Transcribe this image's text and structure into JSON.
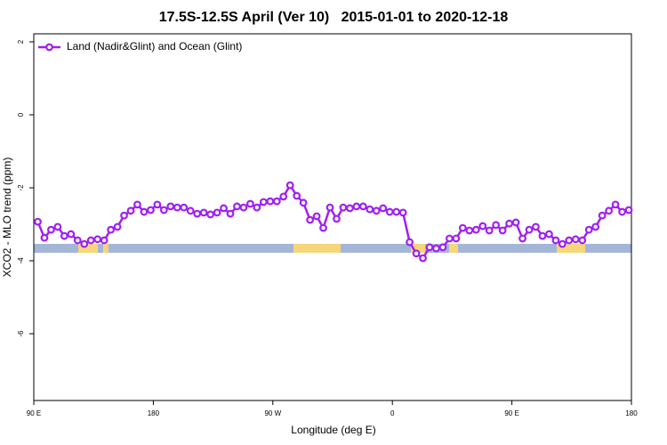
{
  "chart_data": {
    "type": "line",
    "title": "17.5S-12.5S April (Ver 10)   2015-01-01 to 2020-12-18",
    "x_label": "Longitude (deg E)",
    "y_label": "XCO2 - MLO trend (ppm)",
    "x": [
      93,
      98,
      103,
      108,
      113,
      118,
      123,
      128,
      133,
      138,
      143,
      148,
      153,
      158,
      163,
      168,
      173,
      178,
      183,
      188,
      193,
      198,
      203,
      208,
      213,
      218,
      223,
      228,
      233,
      238,
      243,
      248,
      253,
      258,
      263,
      268,
      273,
      278,
      283,
      288,
      293,
      298,
      303,
      308,
      313,
      318,
      323,
      328,
      333,
      338,
      343,
      348,
      353,
      358,
      363,
      368,
      373,
      378,
      383,
      388,
      393,
      398,
      403,
      408,
      413,
      418,
      423,
      428,
      433,
      438,
      443,
      448,
      453,
      458,
      463,
      468,
      473,
      478,
      483,
      488,
      493,
      498,
      503,
      508,
      513,
      518,
      523,
      528,
      533,
      538
    ],
    "series": [
      {
        "name": "Land (Nadir&Glint) and Ocean (Glint)",
        "color": "#a020f0",
        "values": [
          -2.93,
          -3.37,
          -3.15,
          -3.07,
          -3.32,
          -3.27,
          -3.44,
          -3.54,
          -3.44,
          -3.41,
          -3.44,
          -3.15,
          -3.07,
          -2.76,
          -2.63,
          -2.46,
          -2.66,
          -2.61,
          -2.46,
          -2.61,
          -2.51,
          -2.54,
          -2.54,
          -2.63,
          -2.71,
          -2.68,
          -2.73,
          -2.68,
          -2.56,
          -2.71,
          -2.51,
          -2.54,
          -2.44,
          -2.54,
          -2.39,
          -2.37,
          -2.37,
          -2.24,
          -1.93,
          -2.22,
          -2.41,
          -2.88,
          -2.78,
          -3.1,
          -2.54,
          -2.85,
          -2.54,
          -2.56,
          -2.51,
          -2.51,
          -2.59,
          -2.63,
          -2.56,
          -2.66,
          -2.66,
          -2.68,
          -3.49,
          -3.8,
          -3.93,
          -3.63,
          -3.66,
          -3.63,
          -3.39,
          -3.39,
          -3.1,
          -3.17,
          -3.15,
          -3.05,
          -3.17,
          -3.02,
          -3.17,
          -2.98,
          -2.95,
          -3.39,
          -3.15,
          -3.07,
          -3.32,
          -3.27,
          -3.44,
          -3.54,
          -3.44,
          -3.41,
          -3.44,
          -3.15,
          -3.07,
          -2.76,
          -2.63,
          -2.46,
          -2.66,
          -2.61
        ]
      }
    ],
    "xlim": [
      90,
      540
    ],
    "xticks": [
      {
        "value": 90,
        "label": "90 E"
      },
      180,
      {
        "value": 270,
        "label": "90 W"
      },
      {
        "value": 360,
        "label": "0"
      },
      {
        "value": 450,
        "label": "90 E"
      },
      {
        "value": 540,
        "label": "180"
      }
    ],
    "ylim": [
      -7.83,
      2.22
    ],
    "yticks": [
      2,
      0,
      -2,
      -4,
      -6
    ],
    "legend": "top-left"
  }
}
